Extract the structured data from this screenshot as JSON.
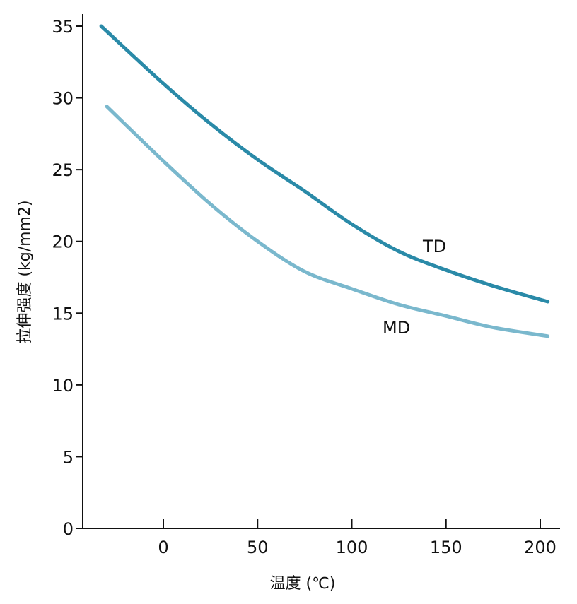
{
  "chart_data": {
    "type": "line",
    "xlabel": "温度 (℃)",
    "ylabel": "拉伸强度 (kg/mm2)",
    "xlim": [
      -43,
      210
    ],
    "ylim": [
      0,
      36
    ],
    "x_ticks": [
      "0",
      "50",
      "100",
      "150",
      "200"
    ],
    "y_ticks": [
      "0",
      "5",
      "10",
      "15",
      "20",
      "25",
      "30",
      "35"
    ],
    "grid": false,
    "series": [
      {
        "name": "TD",
        "color": "#2a8aa8",
        "points": [
          [
            -33,
            35.0
          ],
          [
            0,
            31.0
          ],
          [
            25,
            28.2
          ],
          [
            50,
            25.7
          ],
          [
            75,
            23.5
          ],
          [
            100,
            21.2
          ],
          [
            125,
            19.3
          ],
          [
            150,
            18.0
          ],
          [
            175,
            16.9
          ],
          [
            204,
            15.8
          ]
        ]
      },
      {
        "name": "MD",
        "color": "#7ab8cd",
        "points": [
          [
            -30,
            29.4
          ],
          [
            0,
            25.6
          ],
          [
            25,
            22.6
          ],
          [
            50,
            20.0
          ],
          [
            75,
            17.9
          ],
          [
            100,
            16.7
          ],
          [
            125,
            15.6
          ],
          [
            150,
            14.8
          ],
          [
            175,
            14.0
          ],
          [
            204,
            13.4
          ]
        ]
      }
    ]
  }
}
